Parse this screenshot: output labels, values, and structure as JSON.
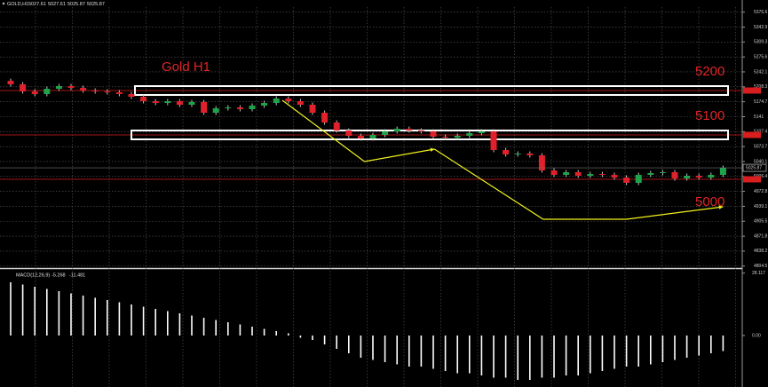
{
  "chart_data": {
    "type": "candlestick",
    "title": "GOLD,H1",
    "header_values": [
      5027.61,
      5027.61,
      5025.87,
      5025.87
    ],
    "ylim": [
      4800,
      5388
    ],
    "yticks": [
      5376.6,
      5342.9,
      5309.3,
      5275.6,
      5242.1,
      5208.3,
      5174.7,
      5141.0,
      5107.4,
      5073.7,
      5040.1,
      5006.4,
      4972.8,
      4939.1,
      4905.5,
      4871.8,
      4838.2,
      4804.5
    ],
    "grid": true,
    "up_color": "#1fa34a",
    "down_color": "#e0202a",
    "open": [
      5222,
      5214,
      5198,
      5192,
      5204,
      5210,
      5206,
      5200,
      5198,
      5196,
      5192,
      5186,
      5176,
      5172,
      5176,
      5168,
      5174,
      5150,
      5160,
      5162,
      5158,
      5166,
      5172,
      5182,
      5176,
      5168,
      5150,
      5128,
      5110,
      5098,
      5092,
      5100,
      5108,
      5114,
      5110,
      5108,
      5096,
      5094,
      5098,
      5104,
      5108,
      5066,
      5056,
      5058,
      5054,
      5020,
      5010,
      5016,
      5008,
      5012,
      5010,
      5004,
      4992,
      5010,
      5014,
      5016,
      5002,
      5008,
      5004,
      5010
    ],
    "high": [
      5227,
      5219,
      5203,
      5209,
      5215,
      5215,
      5211,
      5205,
      5203,
      5201,
      5197,
      5191,
      5181,
      5181,
      5181,
      5179,
      5179,
      5165,
      5167,
      5167,
      5171,
      5177,
      5187,
      5187,
      5181,
      5173,
      5155,
      5133,
      5115,
      5103,
      5105,
      5113,
      5119,
      5119,
      5115,
      5113,
      5101,
      5103,
      5109,
      5113,
      5113,
      5071,
      5063,
      5063,
      5059,
      5025,
      5021,
      5021,
      5017,
      5017,
      5015,
      5009,
      5015,
      5019,
      5021,
      5021,
      5013,
      5013,
      5015,
      5031
    ],
    "low": [
      5209,
      5193,
      5187,
      5187,
      5199,
      5201,
      5195,
      5193,
      5191,
      5187,
      5181,
      5171,
      5167,
      5167,
      5163,
      5163,
      5145,
      5145,
      5155,
      5153,
      5153,
      5161,
      5167,
      5171,
      5163,
      5145,
      5123,
      5105,
      5093,
      5087,
      5087,
      5095,
      5103,
      5105,
      5103,
      5091,
      5089,
      5089,
      5093,
      5099,
      5061,
      5051,
      5051,
      5049,
      5015,
      5005,
      5005,
      5003,
      5003,
      5005,
      4999,
      4987,
      4987,
      5005,
      5009,
      4997,
      4997,
      4999,
      4999,
      5005
    ],
    "close": [
      5214,
      5198,
      5192,
      5204,
      5210,
      5206,
      5200,
      5198,
      5196,
      5192,
      5186,
      5176,
      5172,
      5176,
      5168,
      5174,
      5150,
      5160,
      5162,
      5158,
      5166,
      5172,
      5182,
      5176,
      5168,
      5150,
      5128,
      5110,
      5098,
      5092,
      5100,
      5108,
      5114,
      5110,
      5108,
      5096,
      5094,
      5098,
      5104,
      5108,
      5066,
      5056,
      5058,
      5054,
      5020,
      5010,
      5016,
      5008,
      5012,
      5010,
      5004,
      4992,
      5010,
      5014,
      5016,
      5002,
      5008,
      5004,
      5010,
      5026
    ],
    "chart_label": "Gold H1",
    "levels": [
      {
        "label": "5200",
        "value": 5200,
        "box": true
      },
      {
        "label": "5100",
        "value": 5100,
        "box": true
      },
      {
        "label": "5000",
        "value": 5000,
        "box": false
      }
    ],
    "level_color": "#d81e1e",
    "trend_lines": [
      {
        "color": "#f2f21e",
        "x": [
          22.5,
          29.3,
          35.1
        ],
        "y": [
          5178,
          5040,
          5068
        ]
      },
      {
        "color": "#f2f21e",
        "x": [
          35.1,
          44.1,
          51,
          59
        ],
        "y": [
          5068,
          4910,
          4910,
          4938
        ]
      }
    ],
    "macd": {
      "name": "MACD(12,26,9)",
      "header_values": [
        -5.268,
        -11.481
      ],
      "ylim": [
        -23.2,
        30
      ],
      "yticks": [
        28.117,
        {
          "value": 0,
          "label": "0.00"
        }
      ],
      "color": "#ffffff",
      "values": [
        24,
        23,
        22,
        21,
        20,
        19,
        18,
        17,
        16,
        15,
        14,
        13,
        12,
        11,
        10,
        9,
        8,
        7,
        6,
        5,
        4,
        3,
        2,
        1,
        -1,
        -2,
        -4,
        -6,
        -8,
        -10,
        -11,
        -12,
        -13,
        -14,
        -14,
        -15,
        -16,
        -17,
        -17,
        -18,
        -19,
        -19,
        -20,
        -20,
        -19,
        -19,
        -18,
        -18,
        -17,
        -16,
        -15,
        -14,
        -14,
        -13,
        -12,
        -11,
        -10,
        -9,
        -8,
        -7
      ]
    }
  }
}
